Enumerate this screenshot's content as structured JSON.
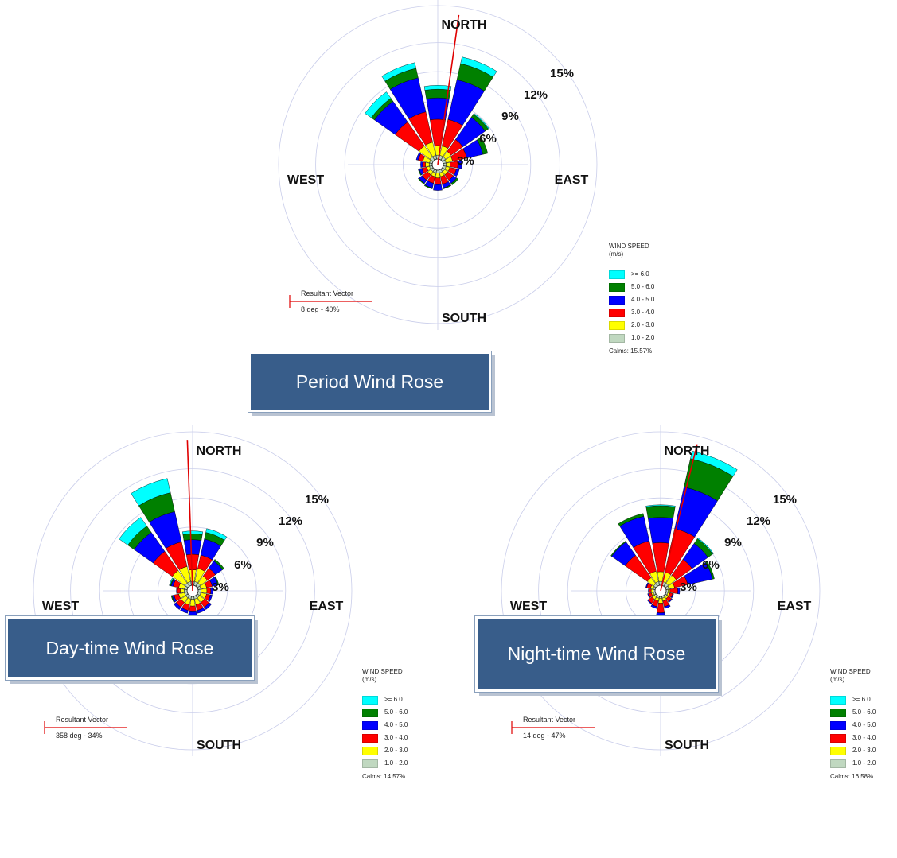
{
  "speed_bins": [
    {
      "label": "1.0 - 2.0",
      "color": "#c0d8c0"
    },
    {
      "label": "2.0 - 3.0",
      "color": "#ffff00"
    },
    {
      "label": "3.0 - 4.0",
      "color": "#ff0000"
    },
    {
      "label": "4.0 - 5.0",
      "color": "#0000ff"
    },
    {
      "label": "5.0 - 6.0",
      "color": "#008000"
    },
    {
      "label": ">= 6.0",
      "color": "#00ffff"
    }
  ],
  "chart_data": [
    {
      "type": "wind-rose",
      "title": "Period Wind Rose",
      "compass": {
        "north": "NORTH",
        "south": "SOUTH",
        "east": "EAST",
        "west": "WEST"
      },
      "radial_ticks": [
        "3%",
        "6%",
        "9%",
        "12%",
        "15%"
      ],
      "radial_max_percent": 15,
      "legend_title_1": "WIND SPEED",
      "legend_title_2": "(m/s)",
      "calms": "Calms: 15.57%",
      "resultant_vector": {
        "label": "Resultant Vector",
        "value": "8 deg - 40%",
        "direction_deg": 8
      },
      "sectors_deg": [
        0,
        22.5,
        45,
        67.5,
        90,
        112.5,
        135,
        157.5,
        180,
        202.5,
        225,
        247.5,
        270,
        292.5,
        315,
        337.5
      ],
      "series": [
        {
          "bin": "1.0 - 2.0",
          "values": [
            0.4,
            0.4,
            0.4,
            0.3,
            0.3,
            0.3,
            0.3,
            0.3,
            0.3,
            0.3,
            0.3,
            0.3,
            0.3,
            0.3,
            0.4,
            0.4
          ]
        },
        {
          "bin": "2.0 - 3.0",
          "values": [
            1.0,
            1.0,
            0.7,
            0.7,
            0.4,
            0.4,
            0.4,
            0.4,
            0.5,
            0.4,
            0.4,
            0.3,
            0.4,
            0.7,
            1.4,
            1.4
          ]
        },
        {
          "bin": "3.0 - 4.0",
          "values": [
            2.7,
            2.8,
            1.5,
            1.5,
            0.8,
            0.7,
            0.7,
            0.8,
            0.7,
            0.7,
            0.7,
            0.5,
            0.3,
            0.5,
            3.0,
            3.2
          ]
        },
        {
          "bin": "4.0 - 5.0",
          "values": [
            2.2,
            4.2,
            2.8,
            1.7,
            0.4,
            0.3,
            0.4,
            0.4,
            0.6,
            0.5,
            0.4,
            0.3,
            0.2,
            0.2,
            2.6,
            3.6
          ]
        },
        {
          "bin": "5.0 - 6.0",
          "values": [
            0.9,
            1.7,
            0.4,
            0.5,
            0.0,
            0.0,
            0.2,
            0.1,
            0.0,
            0.1,
            0.1,
            0.1,
            0.0,
            0.0,
            0.4,
            1.0
          ]
        },
        {
          "bin": ">= 6.0",
          "values": [
            0.4,
            0.7,
            0.1,
            0.0,
            0.0,
            0.0,
            0.0,
            0.0,
            0.0,
            0.0,
            0.0,
            0.0,
            0.0,
            0.0,
            0.8,
            0.6
          ]
        }
      ]
    },
    {
      "type": "wind-rose",
      "title": "Day-time Wind Rose",
      "compass": {
        "north": "NORTH",
        "south": "SOUTH",
        "east": "EAST",
        "west": "WEST"
      },
      "radial_ticks": [
        "3%",
        "6%",
        "9%",
        "12%",
        "15%"
      ],
      "radial_max_percent": 15,
      "legend_title_1": "WIND SPEED",
      "legend_title_2": "(m/s)",
      "calms": "Calms: 14.57%",
      "resultant_vector": {
        "label": "Resultant Vector",
        "value": "358 deg - 34%",
        "direction_deg": 358
      },
      "sectors_deg": [
        0,
        22.5,
        45,
        67.5,
        90,
        112.5,
        135,
        157.5,
        180,
        202.5,
        225,
        247.5,
        270,
        292.5,
        315,
        337.5
      ],
      "series": [
        {
          "bin": "1.0 - 2.0",
          "values": [
            0.4,
            0.4,
            0.4,
            0.3,
            0.3,
            0.3,
            0.3,
            0.3,
            0.3,
            0.3,
            0.3,
            0.3,
            0.3,
            0.3,
            0.4,
            0.4
          ]
        },
        {
          "bin": "2.0 - 3.0",
          "values": [
            1.2,
            1.4,
            0.9,
            0.6,
            0.6,
            0.6,
            0.6,
            0.6,
            0.7,
            0.6,
            0.6,
            0.6,
            0.4,
            0.6,
            1.6,
            1.6
          ]
        },
        {
          "bin": "3.0 - 4.0",
          "values": [
            1.6,
            1.4,
            1.0,
            0.6,
            0.4,
            0.4,
            0.6,
            0.6,
            0.6,
            0.6,
            0.6,
            0.5,
            0.3,
            0.6,
            2.4,
            2.6
          ]
        },
        {
          "bin": "4.0 - 5.0",
          "values": [
            1.5,
            1.7,
            0.9,
            0.6,
            0.2,
            0.2,
            0.3,
            0.3,
            0.4,
            0.3,
            0.3,
            0.2,
            0.1,
            0.2,
            2.4,
            3.2
          ]
        },
        {
          "bin": "5.0 - 6.0",
          "values": [
            0.6,
            0.7,
            0.2,
            0.1,
            0.0,
            0.0,
            0.0,
            0.0,
            0.1,
            0.0,
            0.0,
            0.1,
            0.0,
            0.1,
            0.8,
            2.0
          ]
        },
        {
          "bin": ">= 6.0",
          "values": [
            0.3,
            0.4,
            0.0,
            0.0,
            0.0,
            0.0,
            0.0,
            0.0,
            0.0,
            0.0,
            0.0,
            0.0,
            0.0,
            0.1,
            1.1,
            1.5
          ]
        }
      ]
    },
    {
      "type": "wind-rose",
      "title": "Night-time Wind Rose",
      "compass": {
        "north": "NORTH",
        "south": "SOUTH",
        "east": "EAST",
        "west": "WEST"
      },
      "radial_ticks": [
        "3%",
        "6%",
        "9%",
        "12%",
        "15%"
      ],
      "radial_max_percent": 15,
      "legend_title_1": "WIND SPEED",
      "legend_title_2": "(m/s)",
      "calms": "Calms: 16.58%",
      "resultant_vector": {
        "label": "Resultant Vector",
        "value": "14 deg - 47%",
        "direction_deg": 14
      },
      "sectors_deg": [
        0,
        22.5,
        45,
        67.5,
        90,
        112.5,
        135,
        157.5,
        180,
        202.5,
        225,
        247.5,
        270,
        292.5,
        315,
        337.5
      ],
      "series": [
        {
          "bin": "1.0 - 2.0",
          "values": [
            0.4,
            0.4,
            0.4,
            0.3,
            0.2,
            0.2,
            0.2,
            0.2,
            0.2,
            0.2,
            0.2,
            0.2,
            0.2,
            0.2,
            0.3,
            0.4
          ]
        },
        {
          "bin": "2.0 - 3.0",
          "values": [
            1.0,
            1.0,
            1.0,
            0.6,
            0.2,
            0.2,
            0.2,
            0.3,
            0.5,
            0.3,
            0.3,
            0.2,
            0.2,
            0.3,
            0.8,
            1.1
          ]
        },
        {
          "bin": "3.0 - 4.0",
          "values": [
            3.0,
            4.6,
            2.0,
            1.4,
            0.8,
            0.3,
            0.4,
            0.6,
            1.0,
            0.6,
            0.5,
            0.3,
            0.2,
            0.4,
            2.8,
            3.2
          ]
        },
        {
          "bin": "4.0 - 5.0",
          "values": [
            2.6,
            4.4,
            2.0,
            2.6,
            0.2,
            0.1,
            0.1,
            0.2,
            0.3,
            0.2,
            0.1,
            0.1,
            0.1,
            0.1,
            1.7,
            2.6
          ]
        },
        {
          "bin": "5.0 - 6.0",
          "values": [
            1.2,
            3.0,
            0.6,
            0.2,
            0.0,
            0.0,
            0.0,
            0.0,
            0.0,
            0.0,
            0.0,
            0.0,
            0.0,
            0.0,
            0.1,
            0.3
          ]
        },
        {
          "bin": ">= 6.0",
          "values": [
            0.1,
            0.8,
            0.1,
            0.0,
            0.0,
            0.0,
            0.0,
            0.0,
            0.0,
            0.0,
            0.0,
            0.0,
            0.0,
            0.0,
            0.0,
            0.0
          ]
        }
      ]
    }
  ]
}
